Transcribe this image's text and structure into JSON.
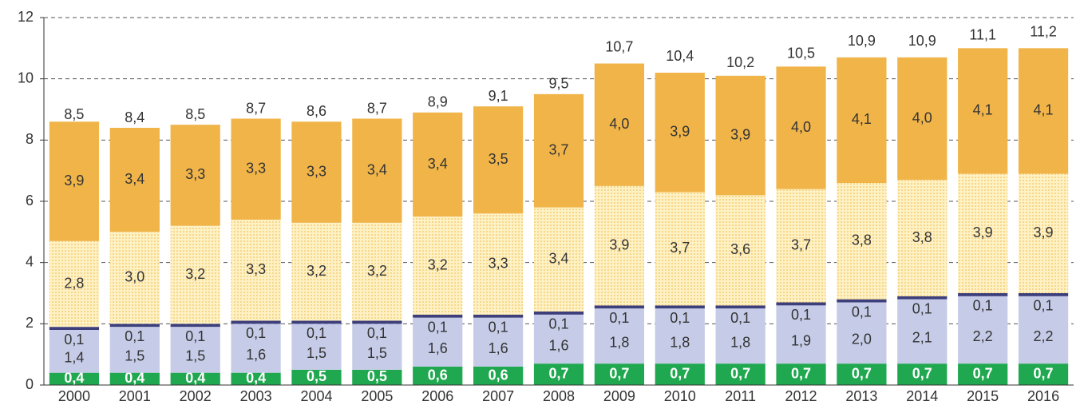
{
  "chart_data": {
    "type": "stacked_bar",
    "categories": [
      "2000",
      "2001",
      "2002",
      "2003",
      "2004",
      "2005",
      "2006",
      "2007",
      "2008",
      "2009",
      "2010",
      "2011",
      "2012",
      "2013",
      "2014",
      "2015",
      "2016"
    ],
    "series": [
      {
        "color": "#1fa84f",
        "values": [
          0.4,
          0.4,
          0.4,
          0.4,
          0.5,
          0.5,
          0.6,
          0.6,
          0.7,
          0.7,
          0.7,
          0.7,
          0.7,
          0.7,
          0.7,
          0.7,
          0.7
        ],
        "value_labels": [
          "0,4",
          "0,4",
          "0,4",
          "0,4",
          "0,5",
          "0,5",
          "0,6",
          "0,6",
          "0,7",
          "0,7",
          "0,7",
          "0,7",
          "0,7",
          "0,7",
          "0,7",
          "0,7",
          "0,7"
        ]
      },
      {
        "color": "#c6cce8",
        "values": [
          1.4,
          1.5,
          1.5,
          1.6,
          1.5,
          1.5,
          1.6,
          1.6,
          1.6,
          1.8,
          1.8,
          1.8,
          1.9,
          2.0,
          2.1,
          2.2,
          2.2
        ],
        "value_labels": [
          "1,4",
          "1,5",
          "1,5",
          "1,6",
          "1,5",
          "1,5",
          "1,6",
          "1,6",
          "1,6",
          "1,8",
          "1,8",
          "1,8",
          "1,9",
          "2,0",
          "2,1",
          "2,2",
          "2,2"
        ]
      },
      {
        "color": "#3d3f7c",
        "values": [
          0.1,
          0.1,
          0.1,
          0.1,
          0.1,
          0.1,
          0.1,
          0.1,
          0.1,
          0.1,
          0.1,
          0.1,
          0.1,
          0.1,
          0.1,
          0.1,
          0.1
        ],
        "value_labels": [
          "0,1",
          "0,1",
          "0,1",
          "0,1",
          "0,1",
          "0,1",
          "0,1",
          "0,1",
          "0,1",
          "0,1",
          "0,1",
          "0,1",
          "0,1",
          "0,1",
          "0,1",
          "0,1",
          "0,1"
        ]
      },
      {
        "color": "#fde9a6",
        "pattern": "dotted",
        "values": [
          2.8,
          3.0,
          3.2,
          3.3,
          3.2,
          3.2,
          3.2,
          3.3,
          3.4,
          3.9,
          3.7,
          3.6,
          3.7,
          3.8,
          3.8,
          3.9,
          3.9
        ],
        "value_labels": [
          "2,8",
          "3,0",
          "3,2",
          "3,3",
          "3,2",
          "3,2",
          "3,2",
          "3,3",
          "3,4",
          "3,9",
          "3,7",
          "3,6",
          "3,7",
          "3,8",
          "3,8",
          "3,9",
          "3,9"
        ]
      },
      {
        "color": "#f0b449",
        "values": [
          3.9,
          3.4,
          3.3,
          3.3,
          3.3,
          3.4,
          3.4,
          3.5,
          3.7,
          4.0,
          3.9,
          3.9,
          4.0,
          4.1,
          4.0,
          4.1,
          4.1
        ],
        "value_labels": [
          "3,9",
          "3,4",
          "3,3",
          "3,3",
          "3,3",
          "3,4",
          "3,4",
          "3,5",
          "3,7",
          "4,0",
          "3,9",
          "3,9",
          "4,0",
          "4,1",
          "4,0",
          "4,1",
          "4,1"
        ]
      }
    ],
    "totals": [
      8.5,
      8.4,
      8.5,
      8.7,
      8.6,
      8.7,
      8.9,
      9.1,
      9.5,
      10.7,
      10.4,
      10.2,
      10.5,
      10.9,
      10.9,
      11.1,
      11.2
    ],
    "totals_labels": [
      "8,5",
      "8,4",
      "8,5",
      "8,7",
      "8,6",
      "8,7",
      "8,9",
      "9,1",
      "9,5",
      "10,7",
      "10,4",
      "10,2",
      "10,5",
      "10,9",
      "10,9",
      "11,1",
      "11,2"
    ],
    "ylim": [
      0,
      12
    ],
    "yticks": [
      0,
      2,
      4,
      6,
      8,
      10,
      12
    ],
    "grid": true
  }
}
